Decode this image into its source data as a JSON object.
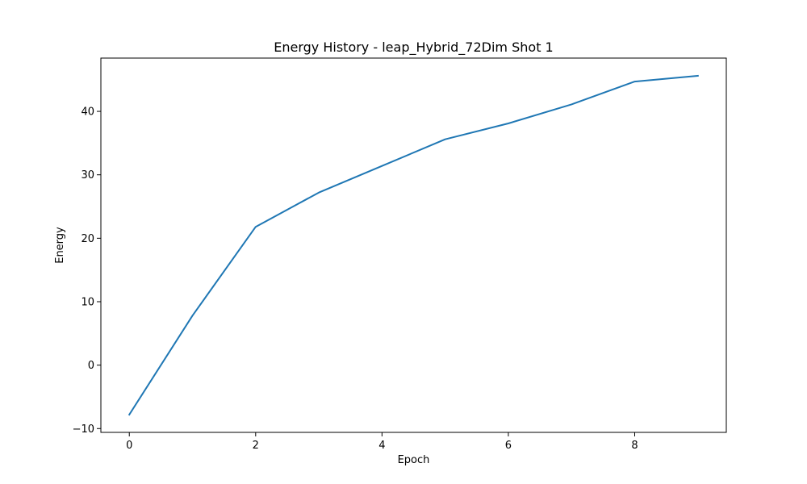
{
  "chart_data": {
    "type": "line",
    "title": "Energy History - leap_Hybrid_72Dim Shot 1",
    "xlabel": "Epoch",
    "ylabel": "Energy",
    "xlim": [
      -0.45,
      9.45
    ],
    "ylim": [
      -10.6,
      48.4
    ],
    "xticks": [
      0,
      2,
      4,
      6,
      8
    ],
    "yticks": [
      -10,
      0,
      10,
      20,
      30,
      40
    ],
    "grid": false,
    "series": [
      {
        "color": "#1f77b4",
        "x": [
          0,
          1,
          2,
          3,
          4,
          5,
          6,
          7,
          8,
          9
        ],
        "y": [
          -7.8,
          7.8,
          21.8,
          27.2,
          31.4,
          35.6,
          38.1,
          41.1,
          44.7,
          45.6
        ]
      }
    ]
  }
}
